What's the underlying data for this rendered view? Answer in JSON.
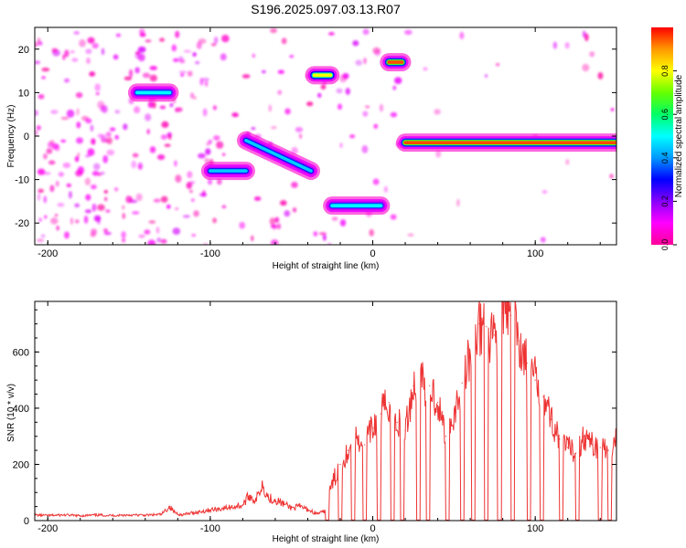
{
  "title": "S196.2025.097.03.13.R07",
  "chart_data": [
    {
      "type": "heatmap",
      "xlabel": "Height of straight line (km)",
      "ylabel": "Frequency (Hz)",
      "xlim": [
        -208,
        150
      ],
      "ylim": [
        -25,
        25
      ],
      "xticks": [
        -200,
        -100,
        0,
        100
      ],
      "yticks": [
        -20,
        -10,
        0,
        10,
        20
      ],
      "colorbar": {
        "label": "Normalized spectral amplitude",
        "range": [
          0,
          1
        ],
        "ticks": [
          "0.0",
          "0.2",
          "0.4",
          "0.6",
          "0.8"
        ],
        "stops": [
          "#ff0099",
          "#ff00ff",
          "#8800ff",
          "#0000ff",
          "#0099ff",
          "#00ffff",
          "#00ff66",
          "#66ff00",
          "#ffff00",
          "#ff9900",
          "#ff0000"
        ]
      },
      "features": [
        {
          "x_range": [
            -145,
            -125
          ],
          "frequency": 10,
          "peak_amplitude": 0.5
        },
        {
          "x_range": [
            -100,
            -78
          ],
          "frequency": -8,
          "peak_amplitude": 0.45
        },
        {
          "x_range": [
            -78,
            -38
          ],
          "frequency_start": -1,
          "frequency_end": -8,
          "peak_amplitude": 0.45
        },
        {
          "x_range": [
            -36,
            -26
          ],
          "frequency": 14,
          "peak_amplitude": 0.8
        },
        {
          "x_range": [
            -25,
            5
          ],
          "frequency": -16,
          "peak_amplitude": 0.5
        },
        {
          "x_range": [
            10,
            18
          ],
          "frequency": 17,
          "peak_amplitude": 0.95
        },
        {
          "x_range": [
            20,
            150
          ],
          "frequency": -1.5,
          "peak_amplitude": 0.95
        }
      ]
    },
    {
      "type": "line",
      "xlabel": "Height of straight line (km)",
      "ylabel": "SNR (10 * v/v)",
      "xlim": [
        -208,
        150
      ],
      "ylim": [
        0,
        780
      ],
      "xticks": [
        -200,
        -100,
        0,
        100
      ],
      "yticks": [
        0,
        200,
        400,
        600
      ],
      "color": "#ee3333",
      "x": [
        -208,
        -200,
        -190,
        -180,
        -170,
        -160,
        -150,
        -140,
        -130,
        -125,
        -122,
        -118,
        -110,
        -100,
        -90,
        -80,
        -76,
        -72,
        -68,
        -64,
        -60,
        -55,
        -50,
        -45,
        -40,
        -35,
        -30,
        -25,
        -20,
        -15,
        -10,
        -5,
        0,
        5,
        10,
        15,
        20,
        25,
        30,
        35,
        40,
        45,
        50,
        55,
        60,
        65,
        70,
        75,
        80,
        85,
        90,
        95,
        100,
        105,
        110,
        115,
        120,
        125,
        130,
        135,
        140,
        145,
        150
      ],
      "y": [
        20,
        18,
        20,
        17,
        20,
        18,
        20,
        19,
        22,
        50,
        30,
        20,
        28,
        38,
        45,
        55,
        90,
        70,
        130,
        80,
        75,
        60,
        45,
        50,
        40,
        25,
        30,
        130,
        200,
        250,
        300,
        270,
        330,
        380,
        420,
        350,
        320,
        480,
        500,
        480,
        420,
        300,
        380,
        490,
        580,
        700,
        690,
        660,
        740,
        730,
        640,
        560,
        500,
        440,
        360,
        290,
        260,
        240,
        300,
        270,
        260,
        250,
        300
      ]
    }
  ]
}
